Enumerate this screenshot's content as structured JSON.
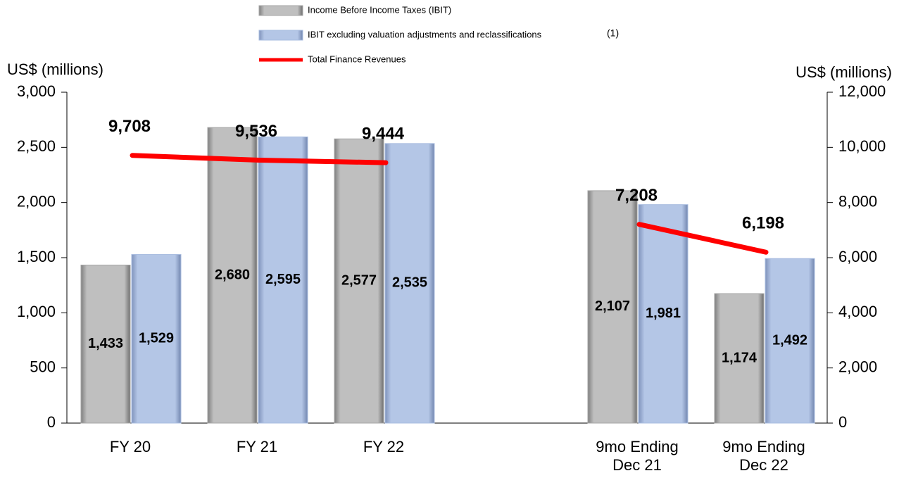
{
  "chart_data": {
    "type": "bar",
    "categories": [
      "FY 20",
      "FY 21",
      "FY 22",
      null,
      "9mo Ending Dec 21",
      "9mo Ending Dec 22"
    ],
    "series": [
      {
        "name": "Income Before Income Taxes (IBIT)",
        "color": "#a6a6a6",
        "type": "bar",
        "values": [
          1433,
          2680,
          2577,
          null,
          2107,
          1174
        ],
        "value_labels": [
          "1,433",
          "2,680",
          "2,577",
          null,
          "2,107",
          "1,174"
        ]
      },
      {
        "name": "IBIT excluding valuation adjustments and reclassifications",
        "color": "#a9bde0",
        "type": "bar",
        "values": [
          1529,
          2595,
          2535,
          null,
          1981,
          1492
        ],
        "value_labels": [
          "1,529",
          "2,595",
          "2,535",
          null,
          "1,981",
          "1,492"
        ]
      },
      {
        "name": "Total Finance Revenues",
        "color": "#ff0000",
        "type": "line",
        "axis": "y2",
        "values": [
          9708,
          9536,
          9444,
          null,
          7208,
          6198
        ],
        "value_labels": [
          "9,708",
          "9,536",
          "9,444",
          null,
          "7,208",
          "6,198"
        ]
      }
    ],
    "legend_note": "(1)",
    "y_label": "US$ (millions)",
    "y2_label": "US$ (millions)",
    "ylim": [
      0,
      3000
    ],
    "yticks": [
      0,
      500,
      {
        "value": 1000,
        "label": "1,000"
      },
      {
        "value": 1500,
        "label": "1,500"
      },
      {
        "value": 2000,
        "label": "2,000"
      },
      {
        "value": 2500,
        "label": "2,500"
      },
      {
        "value": 3000,
        "label": "3,000"
      }
    ],
    "y2lim": [
      0,
      12000
    ],
    "y2ticks": [
      0,
      {
        "value": 2000,
        "label": "2,000"
      },
      {
        "value": 4000,
        "label": "4,000"
      },
      {
        "value": 6000,
        "label": "6,000"
      },
      {
        "value": 8000,
        "label": "8,000"
      },
      {
        "value": 10000,
        "label": "10,000"
      },
      {
        "value": 12000,
        "label": "12,000"
      }
    ],
    "legend_position": "top"
  }
}
